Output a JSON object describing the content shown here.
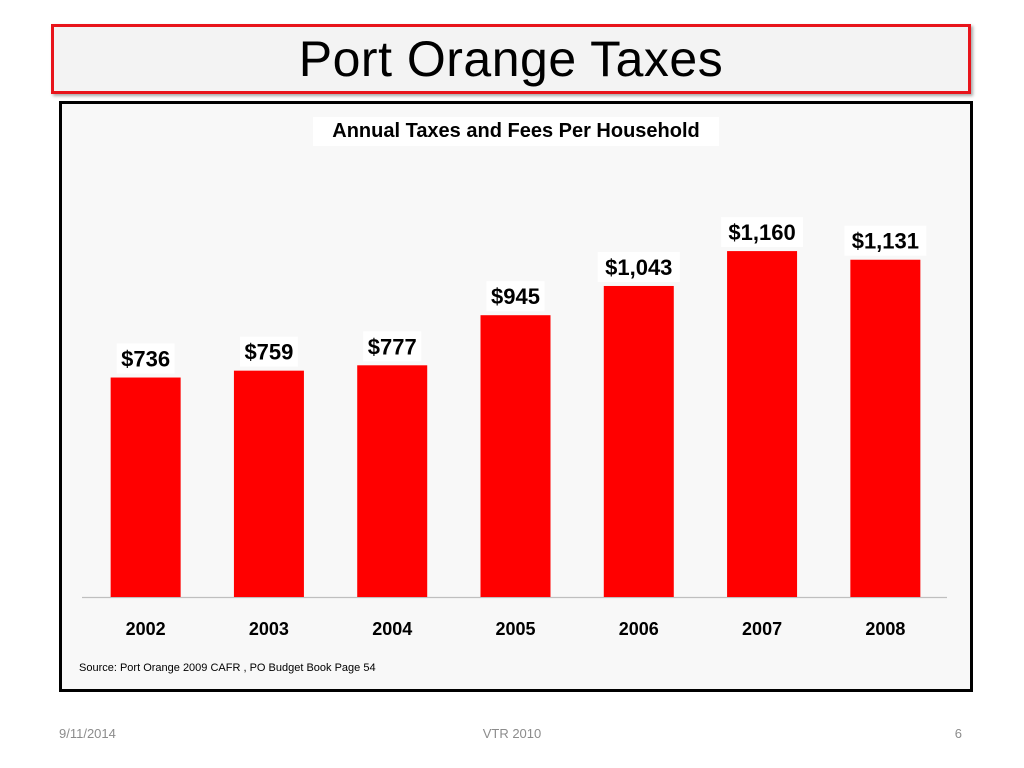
{
  "slide": {
    "title": "Port Orange Taxes",
    "footer_date": "9/11/2014",
    "footer_center": "VTR 2010",
    "page_number": "6"
  },
  "colors": {
    "bar": "#ff0000",
    "title_border": "#e8141b",
    "frame": "#000000"
  },
  "chart_data": {
    "type": "bar",
    "title": "Annual Taxes and Fees Per Household",
    "categories": [
      "2002",
      "2003",
      "2004",
      "2005",
      "2006",
      "2007",
      "2008"
    ],
    "values": [
      736,
      759,
      777,
      945,
      1043,
      1160,
      1131
    ],
    "data_labels": [
      "$736",
      "$759",
      "$777",
      "$945",
      "$1,043",
      "$1,160",
      "$1,131"
    ],
    "xlabel": "",
    "ylabel": "",
    "ylim": [
      0,
      1300
    ],
    "grid": false,
    "legend": "none",
    "source": "Source: Port Orange 2009 CAFR , PO Budget Book Page 54"
  }
}
